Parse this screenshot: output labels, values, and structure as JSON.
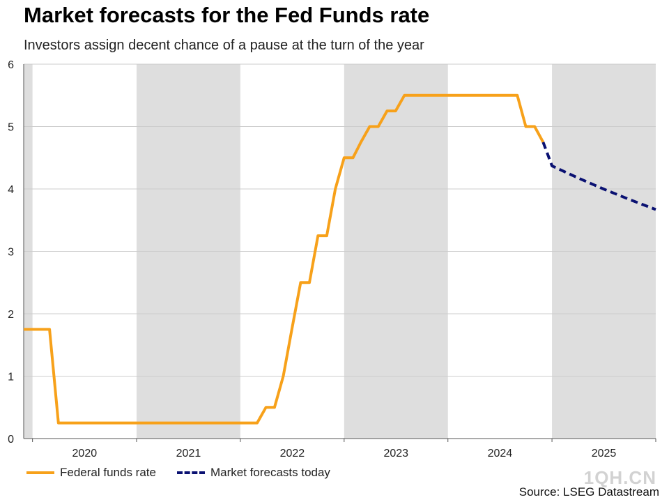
{
  "header": {
    "title": "Market forecasts for the Fed Funds rate",
    "subtitle": "Investors assign decent chance of a pause at the turn of the year"
  },
  "footer": {
    "source": "Source: LSEG Datastream",
    "watermark": "1QH.CN"
  },
  "chart_data": {
    "type": "line",
    "title": "Market forecasts for the Fed Funds rate",
    "subtitle": "Investors assign decent chance of a pause at the turn of the year",
    "xlim": [
      "2019-12-01",
      "2026-01-01"
    ],
    "ylim": [
      0,
      6
    ],
    "yticks": [
      0,
      1,
      2,
      3,
      4,
      5,
      6
    ],
    "xtick_labels": [
      "2020",
      "2021",
      "2022",
      "2023",
      "2024",
      "2025"
    ],
    "shaded_years": [
      "2019",
      "2021",
      "2023",
      "2025"
    ],
    "grid": true,
    "legend_position": "bottom-left",
    "colors": {
      "fed_funds": "#f7a11a",
      "forecast": "#0a1172",
      "shade": "#dedede",
      "grid": "#cccccc"
    },
    "series": [
      {
        "name": "Federal funds rate",
        "style": "solid",
        "points": [
          [
            "2019-12-01",
            1.75
          ],
          [
            "2020-03-01",
            1.75
          ],
          [
            "2020-04-01",
            0.25
          ],
          [
            "2022-03-01",
            0.25
          ],
          [
            "2022-04-01",
            0.5
          ],
          [
            "2022-05-01",
            0.5
          ],
          [
            "2022-06-01",
            1.0
          ],
          [
            "2022-07-01",
            1.75
          ],
          [
            "2022-08-01",
            2.5
          ],
          [
            "2022-09-01",
            2.5
          ],
          [
            "2022-10-01",
            3.25
          ],
          [
            "2022-11-01",
            3.25
          ],
          [
            "2022-12-01",
            4.0
          ],
          [
            "2023-01-01",
            4.5
          ],
          [
            "2023-02-01",
            4.5
          ],
          [
            "2023-03-01",
            4.75
          ],
          [
            "2023-04-01",
            5.0
          ],
          [
            "2023-05-01",
            5.0
          ],
          [
            "2023-06-01",
            5.25
          ],
          [
            "2023-07-01",
            5.25
          ],
          [
            "2023-08-01",
            5.5
          ],
          [
            "2024-09-01",
            5.5
          ],
          [
            "2024-10-01",
            5.0
          ],
          [
            "2024-11-01",
            5.0
          ],
          [
            "2024-12-01",
            4.75
          ]
        ]
      },
      {
        "name": "Market forecasts today",
        "style": "dashed",
        "points": [
          [
            "2024-12-01",
            4.75
          ],
          [
            "2025-01-01",
            4.37
          ],
          [
            "2025-04-01",
            4.18
          ],
          [
            "2025-07-01",
            4.0
          ],
          [
            "2025-10-01",
            3.83
          ],
          [
            "2026-01-01",
            3.67
          ]
        ]
      }
    ]
  }
}
